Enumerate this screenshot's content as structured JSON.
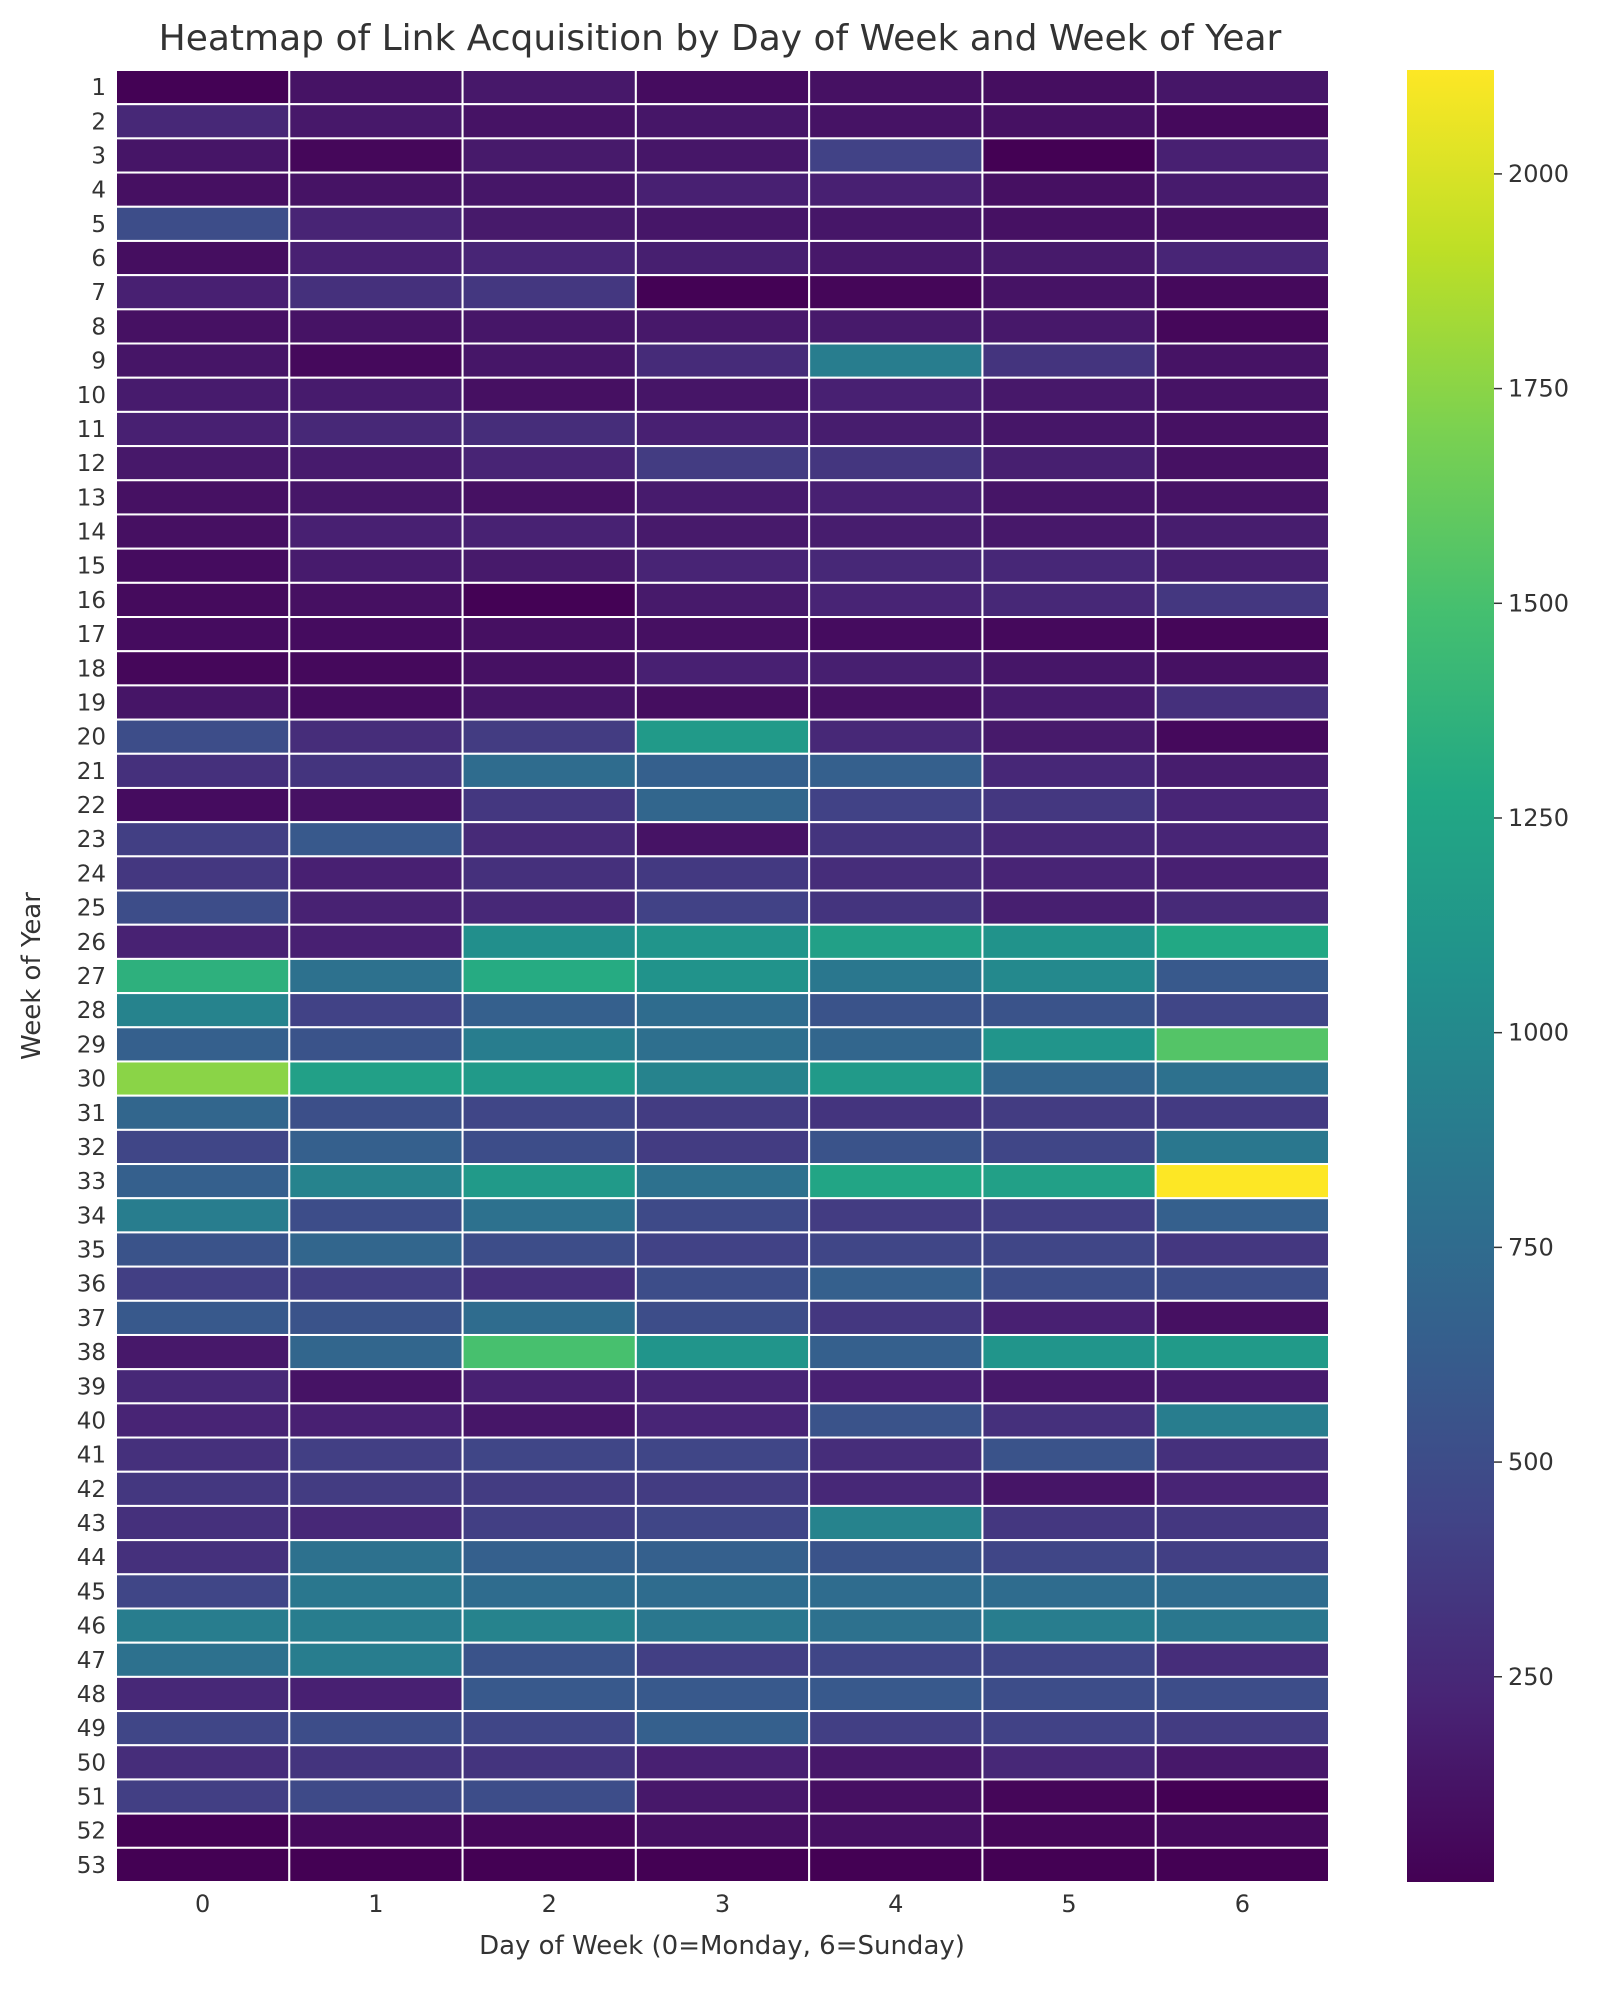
{
  "chart_data": {
    "type": "heatmap",
    "title": "Heatmap of Link Acquisition by Day of Week and Week of Year",
    "xlabel": "Day of Week (0=Monday, 6=Sunday)",
    "ylabel": "Week of Year",
    "x_categories": [
      "0",
      "1",
      "2",
      "3",
      "4",
      "5",
      "6"
    ],
    "y_categories": [
      "1",
      "2",
      "3",
      "4",
      "5",
      "6",
      "7",
      "8",
      "9",
      "10",
      "11",
      "12",
      "13",
      "14",
      "15",
      "16",
      "17",
      "18",
      "19",
      "20",
      "21",
      "22",
      "23",
      "24",
      "25",
      "26",
      "27",
      "28",
      "29",
      "30",
      "31",
      "32",
      "33",
      "34",
      "35",
      "36",
      "37",
      "38",
      "39",
      "40",
      "41",
      "42",
      "43",
      "44",
      "45",
      "46",
      "47",
      "48",
      "49",
      "50",
      "51",
      "52",
      "53"
    ],
    "colormap": "viridis",
    "color_range": [
      11,
      2121
    ],
    "colorbar_ticks": [
      250,
      500,
      750,
      1000,
      1250,
      1500,
      1750,
      2000
    ],
    "grid_line_color": "#ffffff",
    "values": [
      [
        20,
        120,
        150,
        80,
        110,
        90,
        140
      ],
      [
        250,
        150,
        120,
        140,
        120,
        110,
        60
      ],
      [
        130,
        50,
        160,
        140,
        420,
        10,
        200
      ],
      [
        100,
        120,
        140,
        200,
        200,
        100,
        170
      ],
      [
        500,
        220,
        160,
        140,
        140,
        110,
        110
      ],
      [
        90,
        200,
        230,
        190,
        150,
        160,
        230
      ],
      [
        200,
        300,
        350,
        20,
        40,
        120,
        60
      ],
      [
        110,
        120,
        140,
        150,
        160,
        150,
        50
      ],
      [
        130,
        60,
        140,
        270,
        900,
        330,
        120
      ],
      [
        170,
        170,
        100,
        130,
        200,
        150,
        120
      ],
      [
        200,
        250,
        280,
        200,
        180,
        140,
        110
      ],
      [
        150,
        170,
        220,
        380,
        340,
        190,
        110
      ],
      [
        110,
        140,
        110,
        170,
        200,
        130,
        120
      ],
      [
        100,
        200,
        210,
        160,
        180,
        150,
        180
      ],
      [
        80,
        170,
        160,
        220,
        250,
        240,
        190
      ],
      [
        70,
        100,
        20,
        160,
        220,
        250,
        350
      ],
      [
        80,
        80,
        100,
        100,
        80,
        60,
        40
      ],
      [
        50,
        60,
        110,
        200,
        190,
        140,
        110
      ],
      [
        130,
        80,
        130,
        90,
        110,
        170,
        300
      ],
      [
        500,
        280,
        380,
        1150,
        250,
        160,
        60
      ],
      [
        300,
        330,
        750,
        650,
        650,
        240,
        180
      ],
      [
        80,
        110,
        350,
        700,
        420,
        350,
        230
      ],
      [
        400,
        600,
        260,
        120,
        330,
        250,
        230
      ],
      [
        350,
        200,
        300,
        360,
        280,
        220,
        200
      ],
      [
        500,
        210,
        250,
        420,
        330,
        190,
        260
      ],
      [
        210,
        200,
        1050,
        1100,
        1200,
        1080,
        1280
      ],
      [
        1350,
        800,
        1300,
        1080,
        850,
        1000,
        600
      ],
      [
        950,
        420,
        650,
        750,
        550,
        550,
        450
      ],
      [
        650,
        550,
        900,
        780,
        700,
        1100,
        1550
      ],
      [
        1750,
        1200,
        1150,
        950,
        1150,
        700,
        800
      ],
      [
        700,
        520,
        450,
        380,
        330,
        380,
        370
      ],
      [
        450,
        650,
        500,
        380,
        550,
        450,
        850
      ],
      [
        650,
        950,
        1150,
        800,
        1250,
        1200,
        2120
      ],
      [
        900,
        500,
        800,
        480,
        380,
        400,
        650
      ],
      [
        550,
        700,
        500,
        420,
        450,
        450,
        350
      ],
      [
        400,
        400,
        300,
        500,
        650,
        500,
        500
      ],
      [
        600,
        550,
        750,
        500,
        350,
        200,
        100
      ],
      [
        150,
        700,
        1500,
        1100,
        650,
        1100,
        1150
      ],
      [
        250,
        120,
        200,
        220,
        200,
        150,
        170
      ],
      [
        220,
        200,
        140,
        230,
        550,
        300,
        900
      ],
      [
        300,
        400,
        450,
        450,
        280,
        550,
        300
      ],
      [
        350,
        380,
        380,
        380,
        250,
        130,
        220
      ],
      [
        300,
        250,
        400,
        450,
        950,
        350,
        350
      ],
      [
        300,
        800,
        650,
        650,
        550,
        450,
        400
      ],
      [
        450,
        850,
        750,
        750,
        750,
        750,
        750
      ],
      [
        900,
        900,
        950,
        850,
        800,
        900,
        850
      ],
      [
        800,
        900,
        550,
        400,
        450,
        450,
        280
      ],
      [
        250,
        200,
        600,
        600,
        600,
        500,
        500
      ],
      [
        450,
        500,
        450,
        650,
        400,
        420,
        380
      ],
      [
        280,
        330,
        330,
        200,
        150,
        250,
        150
      ],
      [
        400,
        480,
        500,
        150,
        100,
        40,
        10
      ],
      [
        20,
        60,
        50,
        100,
        100,
        40,
        60
      ],
      [
        10,
        10,
        10,
        10,
        10,
        10,
        10
      ]
    ]
  }
}
